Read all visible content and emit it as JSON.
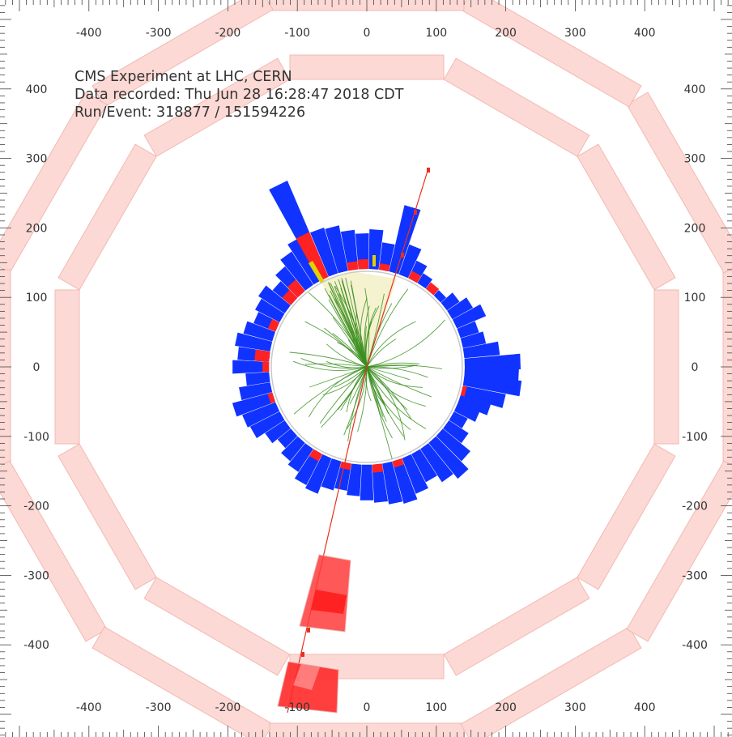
{
  "info": {
    "experiment": "CMS Experiment at LHC, CERN",
    "recorded": "Data recorded: Thu Jun 28 16:28:47 2018 CDT",
    "run_event": "Run/Event: 318877 / 151594226"
  },
  "axes": {
    "x_ticks": [
      -400,
      -300,
      -200,
      -100,
      0,
      100,
      200,
      300,
      400
    ],
    "y_ticks": [
      400,
      300,
      200,
      100,
      0,
      -100,
      -200,
      -300,
      -400
    ]
  },
  "colors": {
    "muon_chamber": "#fcd9d5",
    "muon_chamber_edge": "#f2b9b2",
    "hcal_tower": "#1133ff",
    "ecal_tower": "#ff2222",
    "track": "#3a8f1f",
    "muon_track": "#e8301e",
    "muon_hit": "#ff3b3b",
    "jet_cone": "#f2eec0"
  }
}
